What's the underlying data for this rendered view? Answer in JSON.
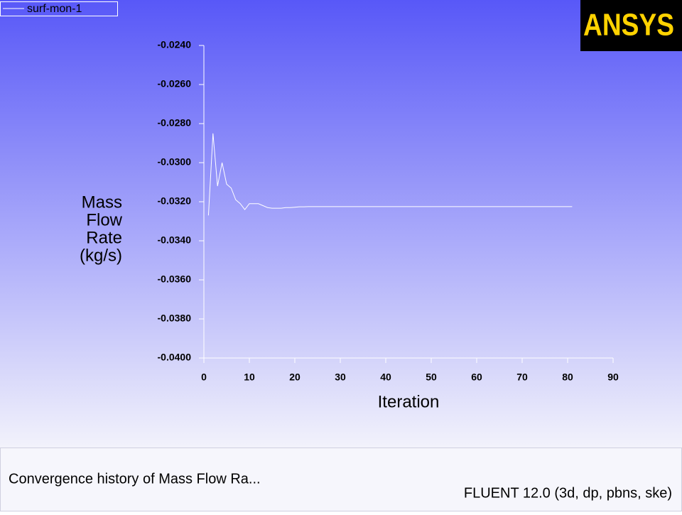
{
  "chart_data": {
    "type": "line",
    "xlabel": "Iteration",
    "ylabel": [
      "Mass",
      "Flow",
      "Rate",
      "(kg/s)"
    ],
    "legend": "top-left",
    "series": [
      {
        "name": "surf-mon-1",
        "color": "#ffffff",
        "x": [
          1,
          2,
          3,
          4,
          5,
          6,
          7,
          8,
          9,
          10,
          11,
          12,
          13,
          14,
          15,
          16,
          17,
          18,
          19,
          20,
          21,
          22,
          23,
          24,
          25,
          81
        ],
        "values": [
          -0.0327,
          -0.0285,
          -0.0312,
          -0.03,
          -0.0311,
          -0.0313,
          -0.0319,
          -0.0321,
          -0.0324,
          -0.0321,
          -0.0321,
          -0.0321,
          -0.0322,
          -0.0323,
          -0.03233,
          -0.03233,
          -0.03233,
          -0.0323,
          -0.0323,
          -0.03228,
          -0.03226,
          -0.03226,
          -0.03225,
          -0.03225,
          -0.03225,
          -0.03225
        ]
      }
    ],
    "xlim": [
      0,
      90
    ],
    "xticks": [
      0,
      10,
      20,
      30,
      40,
      50,
      60,
      70,
      80,
      90
    ],
    "ylim": [
      -0.04,
      -0.024
    ],
    "yticks": [
      {
        "value": -0.024,
        "label": "-0.0240"
      },
      {
        "value": -0.026,
        "label": "-0.0260"
      },
      {
        "value": -0.028,
        "label": "-0.0280"
      },
      {
        "value": -0.03,
        "label": "-0.0300"
      },
      {
        "value": -0.032,
        "label": "-0.0320"
      },
      {
        "value": -0.034,
        "label": "-0.0340"
      },
      {
        "value": -0.036,
        "label": "-0.0360"
      },
      {
        "value": -0.038,
        "label": "-0.0380"
      },
      {
        "value": -0.04,
        "label": "-0.0400"
      }
    ]
  },
  "logo": "ANSYS",
  "footer": {
    "title": "Convergence history of Mass Flow Ra...",
    "version": "FLUENT 12.0 (3d, dp, pbns, ske)"
  }
}
